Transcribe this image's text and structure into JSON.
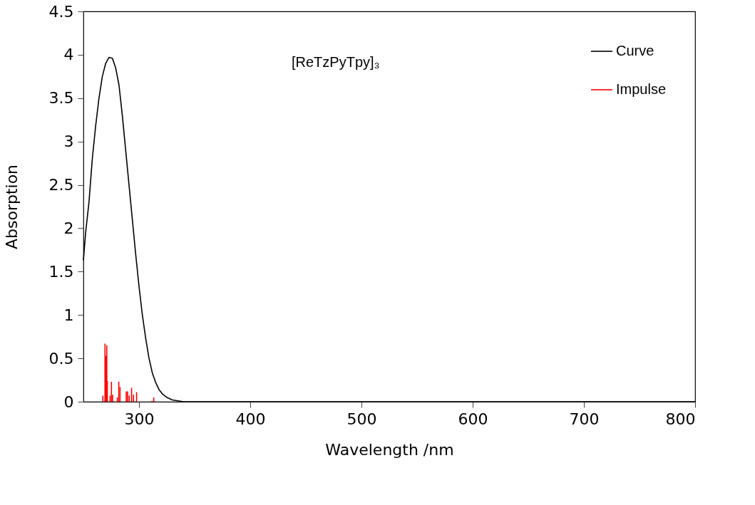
{
  "chart_data": {
    "type": "line",
    "xlabel": "Wavelength /nm",
    "ylabel": "Absorption",
    "annotations": [
      "[ReTzPyTpy]₃"
    ],
    "xlim": [
      250,
      800
    ],
    "xticks": [
      300,
      400,
      500,
      600,
      700,
      800
    ],
    "ylim": [
      0,
      4.5
    ],
    "yticks": [
      0,
      0.5,
      1,
      1.5,
      2,
      2.5,
      3,
      3.5,
      4,
      4.5
    ],
    "grid": false,
    "legend": "top right",
    "marker": "none",
    "line_style": "solid",
    "series": [
      {
        "name": "Curve",
        "color": "#000000",
        "x": [
          250,
          252,
          255,
          258,
          261,
          264,
          267,
          270,
          273,
          276,
          279,
          282,
          285,
          288,
          291,
          294,
          297,
          300,
          303,
          306,
          309,
          312,
          315,
          318,
          321,
          325,
          330,
          335,
          340,
          350,
          400,
          500,
          600,
          700,
          800
        ],
        "values": [
          1.63,
          1.95,
          2.3,
          2.8,
          3.18,
          3.5,
          3.75,
          3.9,
          3.97,
          3.96,
          3.85,
          3.65,
          3.3,
          2.9,
          2.5,
          2.1,
          1.7,
          1.33,
          1.0,
          0.73,
          0.5,
          0.33,
          0.22,
          0.14,
          0.09,
          0.05,
          0.02,
          0.01,
          0,
          0,
          0,
          0,
          0,
          0,
          0
        ]
      },
      {
        "name": "Impulse",
        "type": "bar",
        "color": "#ff0000",
        "x": [
          267.5,
          269.4,
          270.2,
          271,
          271.5,
          274,
          275.2,
          276.3,
          280.5,
          281.8,
          282.9,
          288.5,
          289.7,
          291.2,
          293.3,
          295,
          297.8,
          311.7,
          313.2
        ],
        "values": [
          0.07,
          0.67,
          0.53,
          0.65,
          0.24,
          0.07,
          0.23,
          0.08,
          0.05,
          0.23,
          0.17,
          0.12,
          0.12,
          0.07,
          0.16,
          0.08,
          0.11,
          0.01,
          0.05
        ]
      }
    ]
  }
}
